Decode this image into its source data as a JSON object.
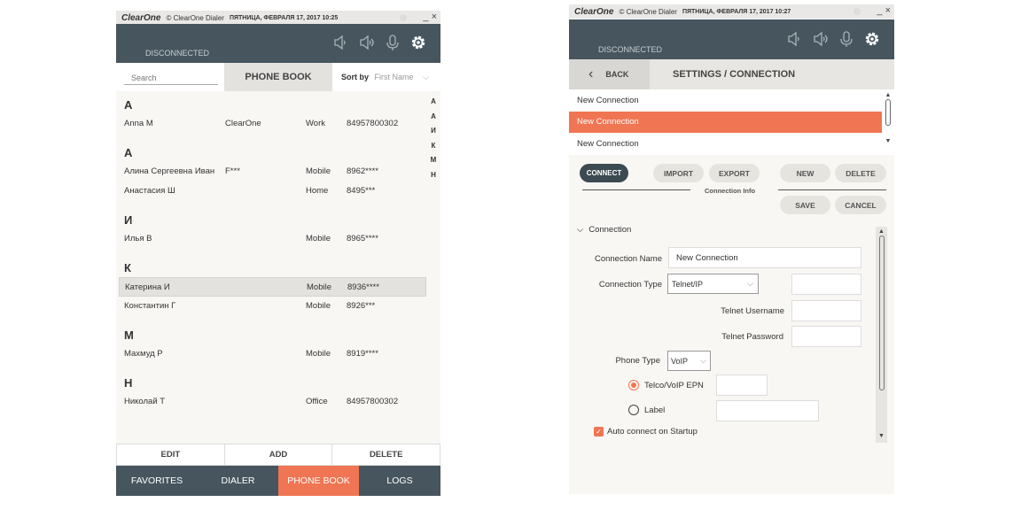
{
  "common": {
    "brand": "ClearOne",
    "app_title": "© ClearOne Dialer",
    "status": "DISCONNECTED",
    "minimize": "_",
    "close": "×"
  },
  "left": {
    "datetime": "ПЯТНИЦА, ФЕВРАЛЯ 17, 2017 10:25",
    "search_placeholder": "Search",
    "title": "PHONE BOOK",
    "sort_label": "Sort by",
    "sort_value": "First Name",
    "index": [
      "А",
      "А",
      "И",
      "К",
      "М",
      "Н"
    ],
    "groups": [
      {
        "letter": "А",
        "contacts": [
          {
            "name": "Anna M",
            "company": "ClearOne",
            "type": "Work",
            "number": "84957800302"
          }
        ]
      },
      {
        "letter": "А",
        "contacts": [
          {
            "name": "Алина Сергеевна Иван",
            "company": "F***",
            "type": "Mobile",
            "number": "8962****"
          },
          {
            "name": "Анастасия Ш",
            "company": "",
            "type": "Home",
            "number": "8495***"
          }
        ]
      },
      {
        "letter": "И",
        "contacts": [
          {
            "name": "Илья В",
            "company": "",
            "type": "Mobile",
            "number": "8965****"
          }
        ]
      },
      {
        "letter": "К",
        "contacts": [
          {
            "name": "Катерина И",
            "company": "",
            "type": "Mobile",
            "number": "8936****",
            "selected": true
          },
          {
            "name": "Константин Г",
            "company": "",
            "type": "Mobile",
            "number": "8926***"
          }
        ]
      },
      {
        "letter": "М",
        "contacts": [
          {
            "name": "Махмуд Р",
            "company": "",
            "type": "Mobile",
            "number": "8919****"
          }
        ]
      },
      {
        "letter": "Н",
        "contacts": [
          {
            "name": "Николай Т",
            "company": "",
            "type": "Office",
            "number": "84957800302"
          }
        ]
      }
    ],
    "actions": {
      "edit": "EDIT",
      "add": "ADD",
      "delete": "DELETE"
    },
    "tabs": [
      "FAVORITES",
      "DIALER",
      "PHONE BOOK",
      "LOGS"
    ],
    "active_tab": "PHONE BOOK"
  },
  "right": {
    "datetime": "ПЯТНИЦА, ФЕВРАЛЯ 17, 2017 10:27",
    "back": "BACK",
    "title": "SETTINGS / CONNECTION",
    "connections": [
      "New Connection",
      "New Connection",
      "New Connection"
    ],
    "selected_index": 1,
    "buttons": {
      "connect": "CONNECT",
      "import": "IMPORT",
      "export": "EXPORT",
      "new": "NEW",
      "delete": "DELETE",
      "save": "SAVE",
      "cancel": "CANCEL"
    },
    "section_label": "Connection Info",
    "section": "Connection",
    "form": {
      "connection_name_label": "Connection Name",
      "connection_name": "New Connection",
      "connection_type_label": "Connection Type",
      "connection_type": "Telnet/IP",
      "telnet_username_label": "Telnet Username",
      "telnet_password_label": "Telnet Password",
      "phone_type_label": "Phone Type",
      "phone_type": "VoIP",
      "radio_epn": "Telco/VoIP EPN",
      "radio_label": "Label",
      "radio_selected": "Telco/VoIP EPN",
      "auto_connect": "Auto connect on Startup",
      "auto_connect_checked": true
    }
  },
  "colors": {
    "header": "#46555e",
    "accent": "#f07553"
  }
}
